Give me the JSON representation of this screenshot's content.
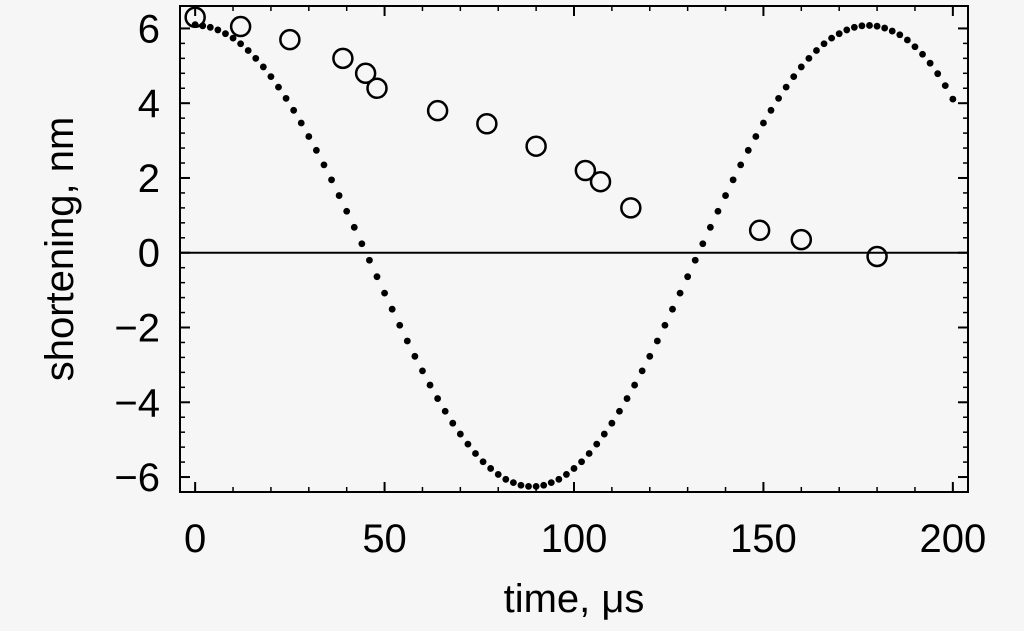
{
  "chart_data": {
    "type": "scatter",
    "title": "",
    "xlabel": "time, μs",
    "ylabel": "shortening, nm",
    "xlim": [
      -4,
      204
    ],
    "ylim": [
      -6.4,
      6.6
    ],
    "xticks": [
      0,
      50,
      100,
      150,
      200
    ],
    "xtick_labels": [
      "0",
      "50",
      "100",
      "150",
      "200"
    ],
    "yticks": [
      -6,
      -4,
      -2,
      0,
      2,
      4,
      6
    ],
    "ytick_labels": [
      "−6",
      "−4",
      "−2",
      "0",
      "2",
      "4",
      "6"
    ],
    "x_minor_step": 10,
    "y_minor_step": 0.4,
    "grid": false,
    "zero_line": true,
    "series": [
      {
        "marker": "open-circle",
        "x": [
          0,
          12,
          25,
          39,
          45,
          48,
          64,
          77,
          90,
          103,
          107,
          115,
          149,
          160,
          180
        ],
        "y": [
          6.3,
          6.05,
          5.7,
          5.2,
          4.8,
          4.4,
          3.8,
          3.45,
          2.85,
          2.2,
          1.9,
          1.2,
          0.6,
          0.35,
          -0.1
        ]
      },
      {
        "marker": "dot",
        "x_start": 0,
        "x_end": 200,
        "x_step": 2,
        "y": [
          6.1,
          6.07,
          6.03,
          5.96,
          5.86,
          5.74,
          5.59,
          5.41,
          5.2,
          4.97,
          4.71,
          4.43,
          4.13,
          3.81,
          3.47,
          3.11,
          2.74,
          2.35,
          1.95,
          1.53,
          1.11,
          0.68,
          0.24,
          -0.2,
          -0.64,
          -1.08,
          -1.51,
          -1.94,
          -2.36,
          -2.77,
          -3.16,
          -3.54,
          -3.9,
          -4.24,
          -4.56,
          -4.85,
          -5.12,
          -5.37,
          -5.59,
          -5.77,
          -5.93,
          -6.06,
          -6.15,
          -6.22,
          -6.25,
          -6.25,
          -6.22,
          -6.15,
          -6.06,
          -5.93,
          -5.77,
          -5.59,
          -5.37,
          -5.12,
          -4.85,
          -4.56,
          -4.24,
          -3.9,
          -3.54,
          -3.16,
          -2.77,
          -2.36,
          -1.94,
          -1.51,
          -1.08,
          -0.64,
          -0.2,
          0.24,
          0.68,
          1.11,
          1.53,
          1.95,
          2.35,
          2.74,
          3.11,
          3.47,
          3.81,
          4.13,
          4.43,
          4.71,
          4.97,
          5.2,
          5.41,
          5.59,
          5.74,
          5.86,
          5.96,
          6.03,
          6.07,
          6.08,
          6.06,
          6.01,
          5.93,
          5.83,
          5.69,
          5.51,
          5.31,
          5.07,
          4.79,
          4.47,
          4.11
        ]
      }
    ]
  }
}
